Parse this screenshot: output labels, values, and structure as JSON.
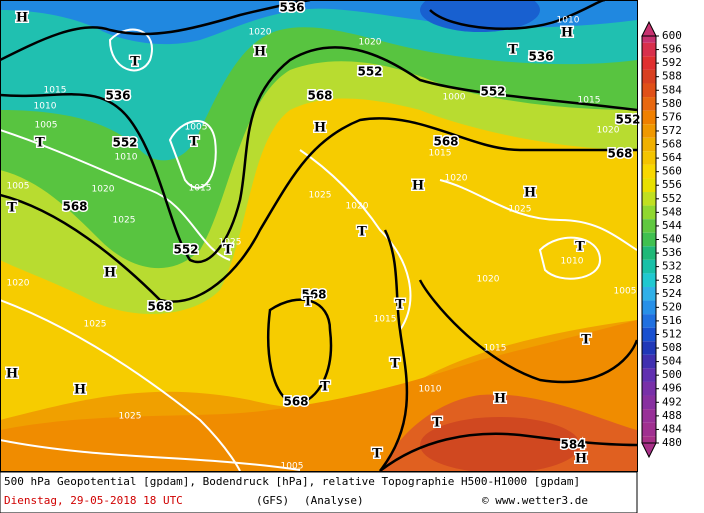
{
  "colorbar": {
    "ticks": [
      600,
      596,
      592,
      588,
      584,
      580,
      576,
      572,
      568,
      564,
      560,
      556,
      552,
      548,
      544,
      540,
      536,
      532,
      528,
      524,
      520,
      516,
      512,
      508,
      504,
      500,
      496,
      492,
      488,
      484,
      480
    ],
    "colors": [
      "#c83270",
      "#d8304c",
      "#e03030",
      "#d84020",
      "#e05018",
      "#e86810",
      "#f08000",
      "#f09800",
      "#f0b000",
      "#f4c400",
      "#f8d800",
      "#e8e000",
      "#c0e020",
      "#90d830",
      "#60c840",
      "#40c050",
      "#20b878",
      "#18c0a8",
      "#20c8d0",
      "#30b0e8",
      "#2890e8",
      "#2070e0",
      "#1850d0",
      "#2038b8",
      "#4030b0",
      "#6030b0",
      "#7830a8",
      "#8830a0",
      "#983098",
      "#a03090",
      "#a83088"
    ]
  },
  "map_labels": [
    "536",
    "H",
    "536",
    "552",
    "568",
    "552",
    "568",
    "568",
    "552",
    "552",
    "536",
    "552",
    "568",
    "568",
    "568",
    "568",
    "584",
    "T",
    "H",
    "T",
    "H",
    "T",
    "T",
    "H",
    "T",
    "H",
    "H",
    "T",
    "H",
    "T",
    "T",
    "T",
    "T",
    "T",
    "T",
    "H",
    "H",
    "T",
    "T",
    "H",
    "T",
    "H",
    "1015",
    "1010",
    "1005",
    "1010",
    "1005",
    "1020",
    "1025",
    "1020",
    "1025",
    "1025",
    "1025",
    "1020",
    "1020",
    "1025",
    "1020",
    "1010",
    "1005",
    "1015",
    "1015",
    "1010",
    "1005",
    "1010",
    "1020",
    "1015",
    "1020",
    "1005",
    "1020",
    "1015",
    "1025",
    "1015",
    "1000"
  ],
  "footer": {
    "line1": "500 hPa Geopotential [gpdam], Bodendruck [hPa], relative Topographie H500-H1000 [gpdam]",
    "date": "Dienstag, 29-05-2018  18 UTC",
    "model": "(GFS)",
    "run": "(Analyse)",
    "credit": "© www.wetter3.de"
  }
}
